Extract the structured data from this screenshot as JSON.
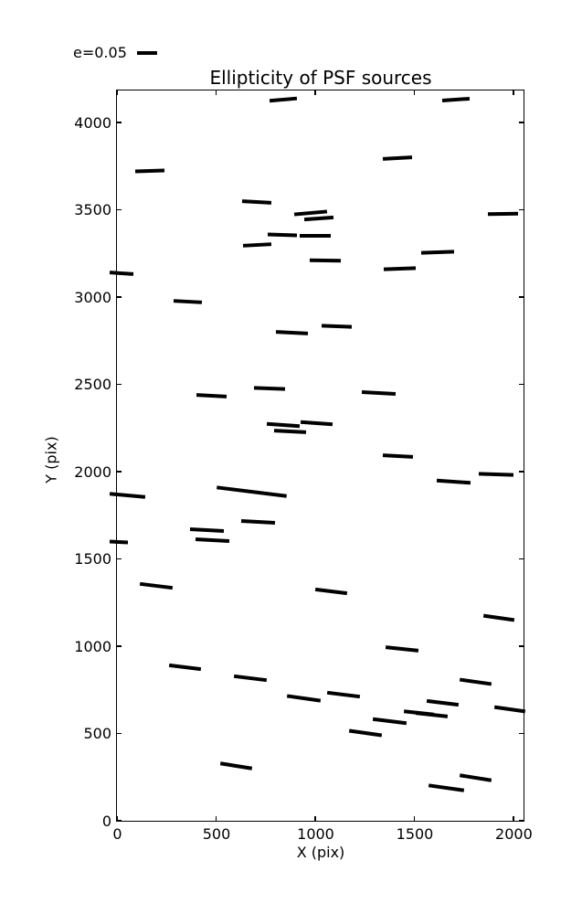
{
  "figure": {
    "title": "Ellipticity of PSF sources",
    "xlabel": "X (pix)",
    "ylabel": "Y (pix)",
    "background_color": "#ffffff",
    "line_color": "#000000"
  },
  "legend": {
    "label": "e=0.05",
    "position": "upper-left-outside"
  },
  "chart_data": {
    "type": "scatter",
    "marker": "ellipticity-whisker",
    "title": "Ellipticity of PSF sources",
    "xlabel": "X (pix)",
    "ylabel": "Y (pix)",
    "xlim": [
      0,
      2051
    ],
    "ylim": [
      0,
      4183
    ],
    "xticks": [
      0,
      500,
      1000,
      1500,
      2000
    ],
    "yticks": [
      0,
      500,
      1000,
      1500,
      2000,
      2500,
      3000,
      3500,
      4000
    ],
    "grid": false,
    "legend_entry": {
      "label": "e=0.05",
      "length": 100
    },
    "whisker_note": "x,y = segment center in pixel coords of the detector; len = segment length in x-axis data units; ang = tilt in degrees, positive rises to the right",
    "whiskers": [
      {
        "x": 840,
        "y": 4131,
        "len": 138,
        "ang": 5
      },
      {
        "x": 1709,
        "y": 4129,
        "len": 138,
        "ang": 4
      },
      {
        "x": 166,
        "y": 3724,
        "len": 147,
        "ang": 2
      },
      {
        "x": 1415,
        "y": 3798,
        "len": 147,
        "ang": 3
      },
      {
        "x": 706,
        "y": 3544,
        "len": 147,
        "ang": -3
      },
      {
        "x": 977,
        "y": 3481,
        "len": 166,
        "ang": 5
      },
      {
        "x": 1020,
        "y": 3452,
        "len": 147,
        "ang": 4
      },
      {
        "x": 1949,
        "y": 3477,
        "len": 152,
        "ang": 1
      },
      {
        "x": 834,
        "y": 3357,
        "len": 147,
        "ang": -2
      },
      {
        "x": 999,
        "y": 3351,
        "len": 156,
        "ang": 0
      },
      {
        "x": 706,
        "y": 3297,
        "len": 143,
        "ang": 3
      },
      {
        "x": 1618,
        "y": 3256,
        "len": 166,
        "ang": 2
      },
      {
        "x": 1052,
        "y": 3208,
        "len": 156,
        "ang": -1
      },
      {
        "x": 1426,
        "y": 3163,
        "len": 161,
        "ang": 2
      },
      {
        "x": 25,
        "y": 3137,
        "len": 120,
        "ang": -4
      },
      {
        "x": 359,
        "y": 2975,
        "len": 143,
        "ang": -3
      },
      {
        "x": 884,
        "y": 2794,
        "len": 161,
        "ang": -3
      },
      {
        "x": 1109,
        "y": 2833,
        "len": 152,
        "ang": -2
      },
      {
        "x": 771,
        "y": 2477,
        "len": 156,
        "ang": -2
      },
      {
        "x": 479,
        "y": 2435,
        "len": 152,
        "ang": -3
      },
      {
        "x": 1321,
        "y": 2448,
        "len": 170,
        "ang": -3
      },
      {
        "x": 838,
        "y": 2267,
        "len": 166,
        "ang": -4
      },
      {
        "x": 1008,
        "y": 2278,
        "len": 161,
        "ang": -4
      },
      {
        "x": 874,
        "y": 2228,
        "len": 161,
        "ang": -3
      },
      {
        "x": 1417,
        "y": 2089,
        "len": 152,
        "ang": -3
      },
      {
        "x": 55,
        "y": 1863,
        "len": 180,
        "ang": -5
      },
      {
        "x": 679,
        "y": 1886,
        "len": 354,
        "ang": -7
      },
      {
        "x": 1698,
        "y": 1945,
        "len": 170,
        "ang": -4
      },
      {
        "x": 1912,
        "y": 1984,
        "len": 175,
        "ang": -2
      },
      {
        "x": 710,
        "y": 1713,
        "len": 170,
        "ang": -3
      },
      {
        "x": 452,
        "y": 1663,
        "len": 170,
        "ang": -3
      },
      {
        "x": 480,
        "y": 1608,
        "len": 170,
        "ang": -3
      },
      {
        "x": 7,
        "y": 1599,
        "len": 90,
        "ang": -3
      },
      {
        "x": 196,
        "y": 1345,
        "len": 166,
        "ang": -7
      },
      {
        "x": 1081,
        "y": 1316,
        "len": 161,
        "ang": -7
      },
      {
        "x": 1926,
        "y": 1164,
        "len": 156,
        "ang": -8
      },
      {
        "x": 1438,
        "y": 983,
        "len": 166,
        "ang": -6
      },
      {
        "x": 345,
        "y": 881,
        "len": 161,
        "ang": -7
      },
      {
        "x": 674,
        "y": 815,
        "len": 166,
        "ang": -7
      },
      {
        "x": 943,
        "y": 702,
        "len": 170,
        "ang": -8
      },
      {
        "x": 1144,
        "y": 723,
        "len": 166,
        "ang": -7
      },
      {
        "x": 1808,
        "y": 794,
        "len": 161,
        "ang": -8
      },
      {
        "x": 1643,
        "y": 676,
        "len": 161,
        "ang": -7
      },
      {
        "x": 1981,
        "y": 640,
        "len": 156,
        "ang": -8
      },
      {
        "x": 1523,
        "y": 619,
        "len": 152,
        "ang": -6
      },
      {
        "x": 1588,
        "y": 608,
        "len": 161,
        "ang": -6
      },
      {
        "x": 1376,
        "y": 569,
        "len": 170,
        "ang": -7
      },
      {
        "x": 1254,
        "y": 503,
        "len": 166,
        "ang": -8
      },
      {
        "x": 603,
        "y": 315,
        "len": 161,
        "ang": -9
      },
      {
        "x": 1808,
        "y": 244,
        "len": 161,
        "ang": -9
      },
      {
        "x": 1661,
        "y": 189,
        "len": 179,
        "ang": -8
      }
    ]
  }
}
